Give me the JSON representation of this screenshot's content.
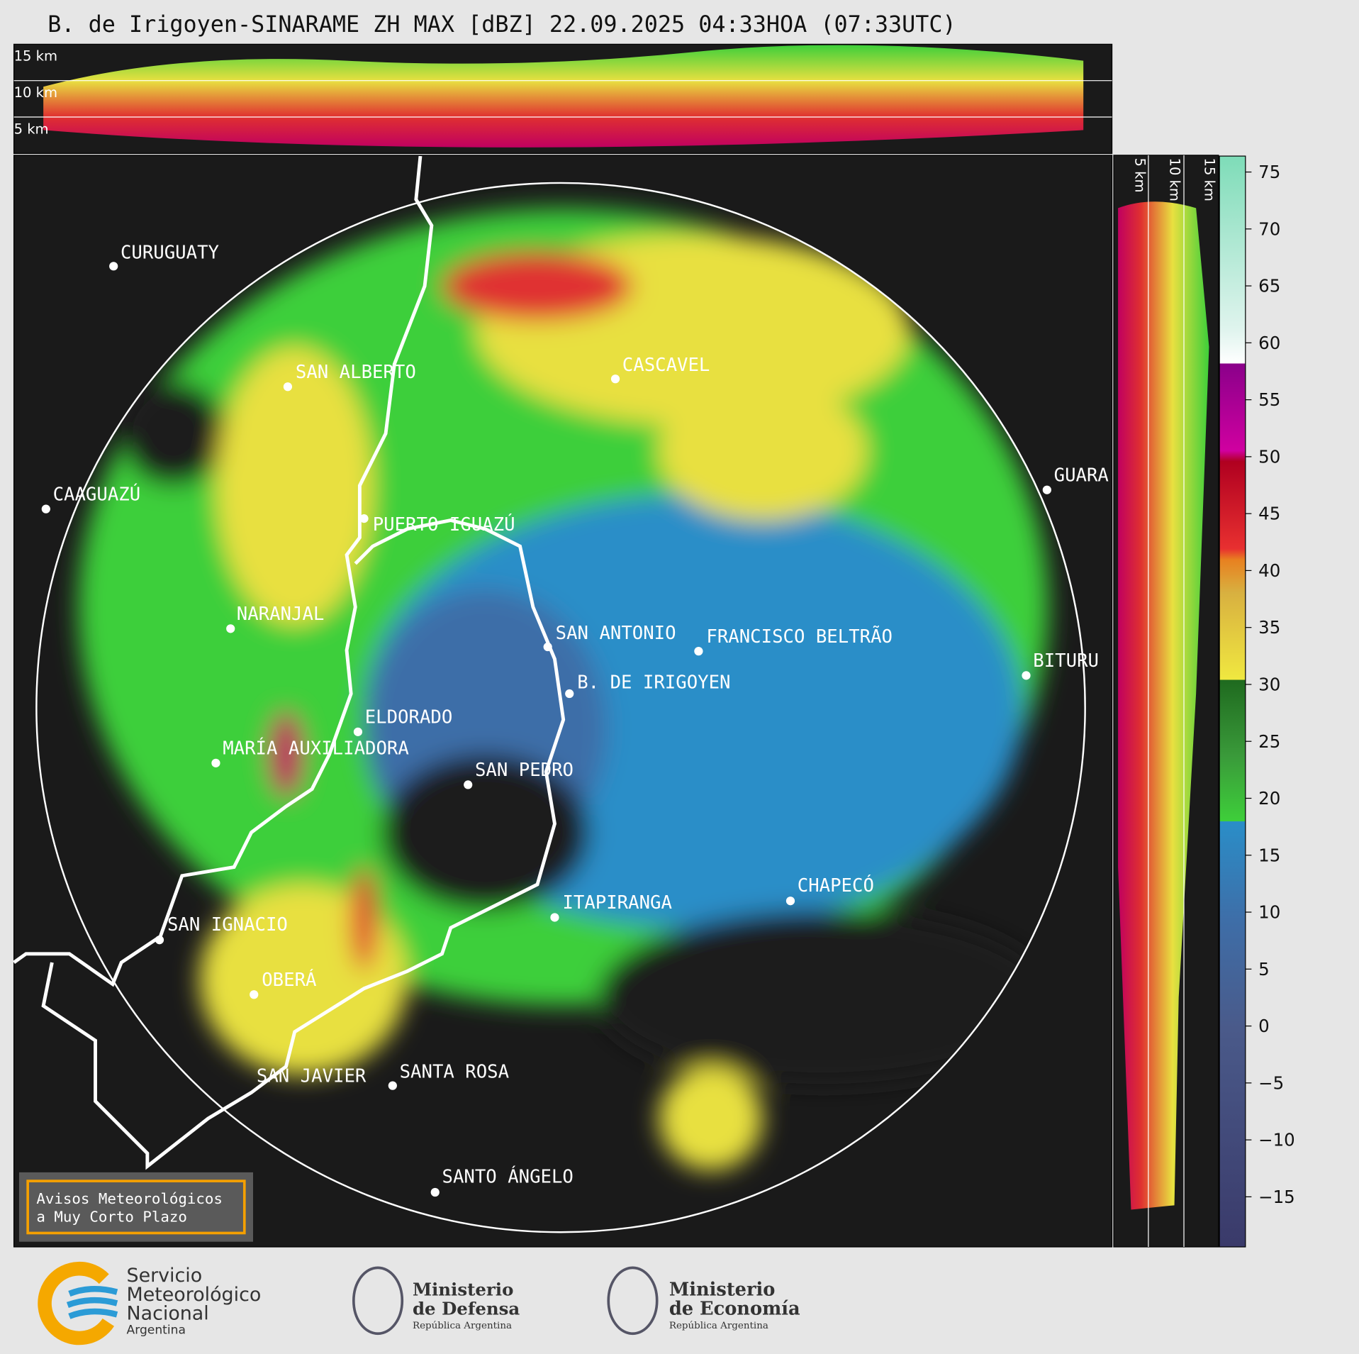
{
  "title": "B. de Irigoyen-SINARAME ZH MAX [dBZ] 22.09.2025 04:33HOA (07:33UTC)",
  "top_panel_labels": [
    "15 km",
    "10 km",
    "5 km"
  ],
  "side_panel_labels": [
    "5 km",
    "10 km",
    "15 km"
  ],
  "cities": [
    "CURUGUATY",
    "SAN ALBERTO",
    "CASCAVEL",
    "CAAGUAZÚ",
    "PUERTO IGUAZÚ",
    "GUARA",
    "NARANJAL",
    "SAN ANTONIO",
    "FRANCISCO BELTRÃO",
    "B. DE IRIGOYEN",
    "BITURU",
    "ELDORADO",
    "MARÍA AUXILIADORA",
    "SAN PEDRO",
    "CHAPECÓ",
    "ITAPIRANGA",
    "SAN IGNACIO",
    "OBERÁ",
    "SAN JAVIER",
    "SANTA ROSA",
    "SANTO ÁNGELO"
  ],
  "colorbar": {
    "lim": [
      -19.4,
      76.4
    ],
    "ticks": [
      {
        "value": -15,
        "label": "−15"
      },
      {
        "value": -10,
        "label": "−10"
      },
      {
        "value": -5,
        "label": "−5"
      },
      0,
      5,
      10,
      15,
      20,
      25,
      30,
      35,
      40,
      45,
      50,
      55,
      60,
      65,
      70,
      75
    ]
  },
  "warning_box": [
    "Avisos Meteorológicos",
    "a Muy Corto Plazo"
  ],
  "logos": {
    "smn": [
      "Servicio",
      "Meteorológico",
      "Nacional",
      "Argentina"
    ],
    "defensa": [
      "Ministerio",
      "de Defensa",
      "República Argentina"
    ],
    "economia": [
      "Ministerio",
      "de Economía",
      "República Argentina"
    ]
  }
}
